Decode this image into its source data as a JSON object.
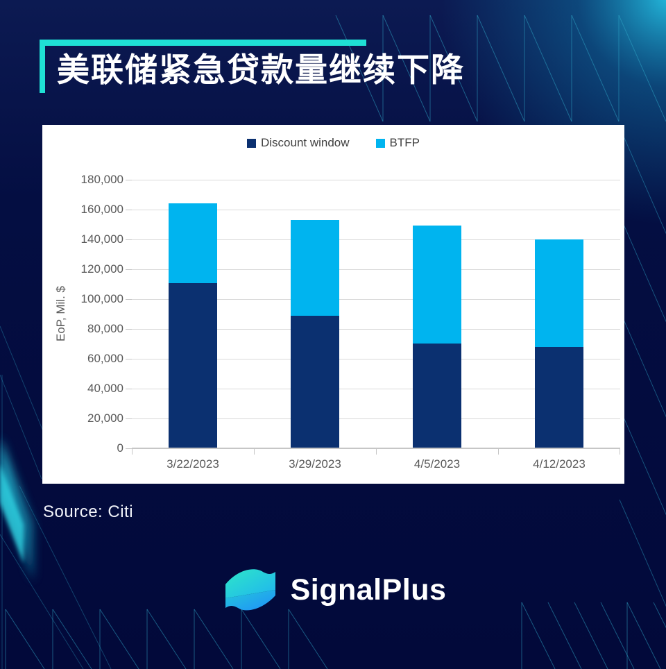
{
  "title": "美联储紧急贷款量继续下降",
  "source": "Source: Citi",
  "brand": {
    "name": "SignalPlus"
  },
  "colors": {
    "background": "#040e42",
    "accent_teal": "#1fe0d5",
    "panel": "#ffffff",
    "discount_window": "#0b3070",
    "btfp": "#00b4ef",
    "grid": "#d9d9d9",
    "axis_line": "#c6c6c6",
    "axis_text": "#595959",
    "legend_text": "#404040",
    "title_text": "#ffffff",
    "source_text": "#f2f4fa",
    "pattern_line": "#2fa9c9",
    "logo_gradient_start": "#2ee6c8",
    "logo_gradient_end": "#1f8ffb"
  },
  "chart_data": {
    "type": "bar",
    "stacked": true,
    "title": "",
    "xlabel": "",
    "ylabel": "EoP, Mil. $",
    "categories": [
      "3/22/2023",
      "3/29/2023",
      "4/5/2023",
      "4/12/2023"
    ],
    "series": [
      {
        "name": "Discount window",
        "color_key": "discount_window",
        "values": [
          110200,
          88200,
          69700,
          67600
        ]
      },
      {
        "name": "BTFP",
        "color_key": "btfp",
        "values": [
          53700,
          64400,
          79000,
          71900
        ]
      }
    ],
    "totals": [
      163900,
      152600,
      148700,
      139500
    ],
    "ylim": [
      0,
      180000
    ],
    "ytick_step": 20000,
    "ytick_labels": [
      "0",
      "20,000",
      "40,000",
      "60,000",
      "80,000",
      "100,000",
      "120,000",
      "140,000",
      "160,000",
      "180,000"
    ],
    "legend_position": "top-center",
    "grid": true
  }
}
